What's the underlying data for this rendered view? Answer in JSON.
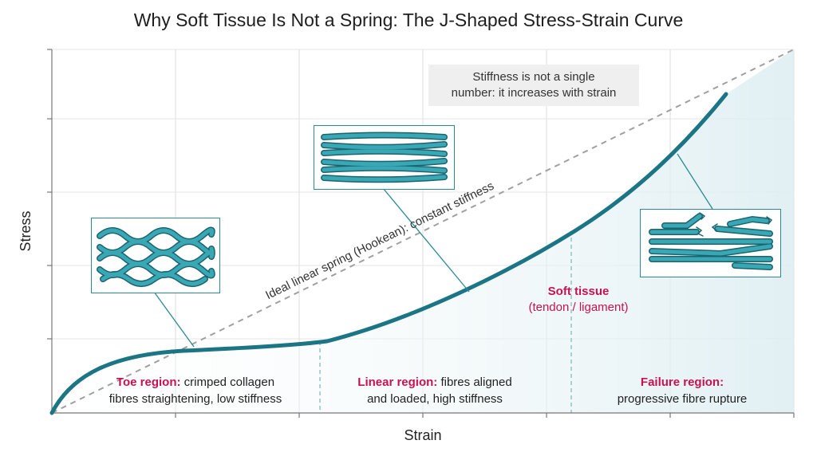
{
  "title": "Why Soft Tissue Is Not a Spring: The J-Shaped Stress-Strain Curve",
  "axes": {
    "x_label": "Strain",
    "y_label": "Stress"
  },
  "note": {
    "line1": "Stiffness is not a single",
    "line2": "number: it increases with strain"
  },
  "spring_label": "Ideal linear spring (Hookean): constant stiffness",
  "tissue_label": {
    "name": "Soft tissue",
    "detail": "(tendon / ligament)"
  },
  "regions": {
    "toe": {
      "title": "Toe region:",
      "text1": "crimped collagen",
      "text2": "fibres straightening, low stiffness"
    },
    "linear": {
      "title": "Linear region:",
      "text1": "fibres aligned",
      "text2": "and loaded, high stiffness"
    },
    "failure": {
      "title": "Failure region:",
      "text1": "progressive fibre rupture"
    }
  },
  "insets": {
    "toe": "crimped-fibres-icon",
    "linear": "aligned-fibres-icon",
    "failure": "ruptured-fibres-icon"
  },
  "colors": {
    "curve": "#1b7585",
    "fibre": "#2f9aa8",
    "fibre_edge": "#1a6470",
    "accent": "#c8124f",
    "spring_line": "#a0a0a0",
    "region_fill": "#e3f1f4"
  }
}
